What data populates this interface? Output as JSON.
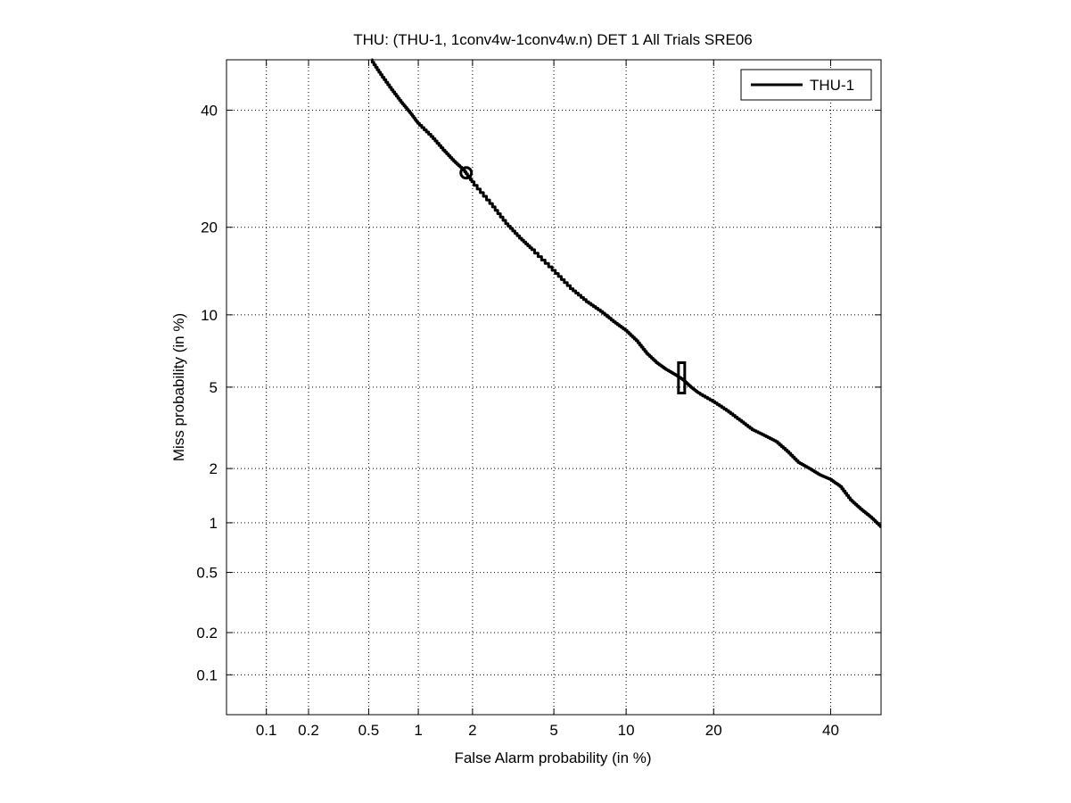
{
  "chart_data": {
    "type": "line",
    "title": "THU: (THU-1, 1conv4w-1conv4w.n) DET 1 All Trials SRE06",
    "xlabel": "False Alarm probability (in %)",
    "ylabel": "Miss probability (in %)",
    "x_scale": "probit",
    "y_scale": "probit",
    "xlim": [
      0.05,
      50
    ],
    "ylim": [
      0.05,
      50
    ],
    "x_ticks": [
      0.1,
      0.2,
      0.5,
      1,
      2,
      5,
      10,
      20,
      40
    ],
    "x_tick_labels": [
      "0.1",
      "0.2",
      "0.5",
      "1",
      "2",
      "5",
      "10",
      "20",
      "40"
    ],
    "y_ticks": [
      0.1,
      0.2,
      0.5,
      1,
      2,
      5,
      10,
      20,
      40
    ],
    "y_tick_labels": [
      "0.1",
      "0.2",
      "0.5",
      "1",
      "2",
      "5",
      "10",
      "20",
      "40"
    ],
    "grid": true,
    "legend_position": "top-right",
    "series": [
      {
        "name": "THU-1",
        "color": "#000000",
        "x": [
          0.52,
          0.6,
          0.7,
          0.8,
          0.9,
          1.0,
          1.2,
          1.4,
          1.6,
          1.8,
          2.0,
          2.5,
          3.0,
          3.5,
          4.0,
          5.0,
          6.0,
          7.0,
          8.0,
          9.0,
          10.0,
          11.0,
          12.0,
          13.0,
          14.0,
          15.0,
          16.0,
          17.0,
          18.0,
          20.0,
          22.0,
          24.0,
          26.0,
          28.0,
          30.0,
          32.0,
          34.0,
          36.0,
          38.0,
          40.0,
          42.0,
          44.0,
          46.0,
          48.0,
          50.0
        ],
        "y": [
          50.0,
          47.0,
          44.0,
          41.5,
          39.5,
          37.5,
          35.0,
          32.5,
          30.5,
          29.0,
          27.0,
          23.5,
          20.5,
          18.5,
          17.0,
          14.5,
          12.5,
          11.2,
          10.3,
          9.4,
          8.7,
          7.9,
          7.0,
          6.4,
          6.0,
          5.7,
          5.4,
          5.0,
          4.7,
          4.3,
          3.9,
          3.5,
          3.15,
          2.95,
          2.75,
          2.45,
          2.15,
          2.0,
          1.85,
          1.75,
          1.6,
          1.35,
          1.2,
          1.08,
          0.95
        ]
      }
    ],
    "markers": [
      {
        "name": "circle",
        "x": 1.85,
        "y": 28.5
      },
      {
        "name": "box",
        "x": 15.8,
        "y": 5.5
      }
    ]
  }
}
